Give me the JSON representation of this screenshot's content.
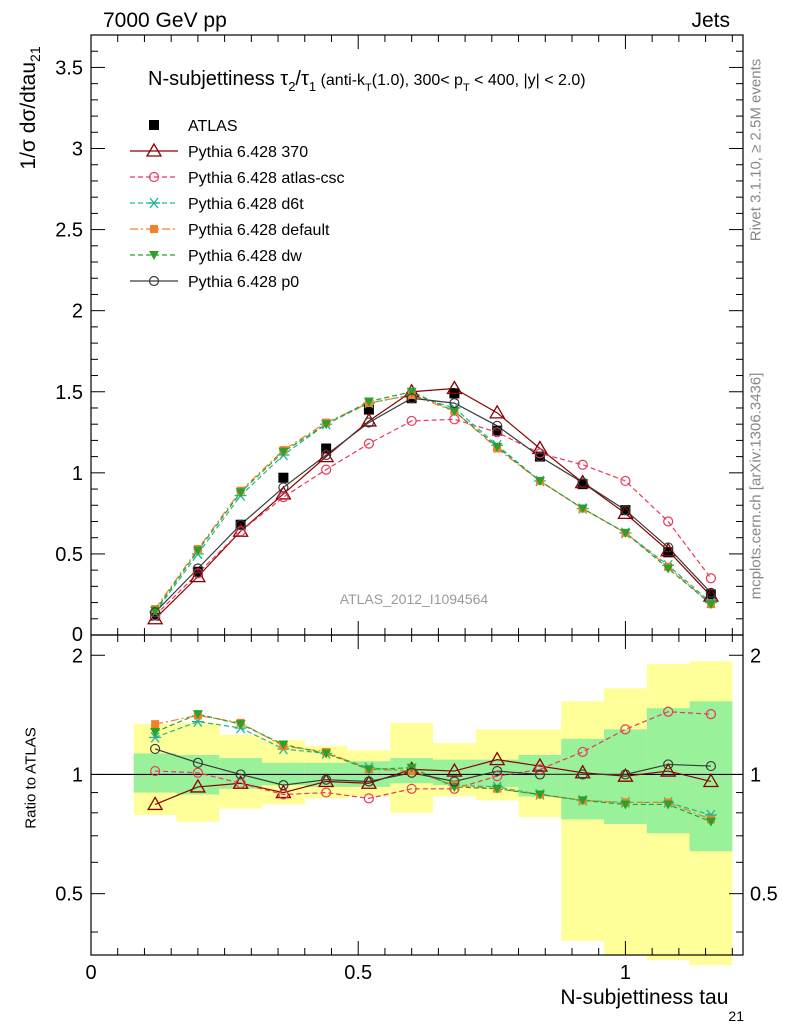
{
  "header": {
    "energy_label": "7000 GeV pp",
    "type_label": "Jets"
  },
  "axes": {
    "upper_ylabel_main": "1/σ dσ/dtau",
    "upper_ylabel_sub": "21",
    "ratio_ylabel": "Ratio to ATLAS",
    "xlabel_main": "N-subjettiness tau",
    "xlabel_sub": "21"
  },
  "side_text": {
    "rivet": "Rivet 3.1.10, ≥ 2.5M events",
    "mcplots": "mcplots.cern.ch [arXiv:1306.3436]"
  },
  "chart_data": {
    "type": "line",
    "title": "N-subjettiness τ2/τ1 (anti-kT(1.0), 300< pT < 400, |y| < 2.0)",
    "watermark": "ATLAS_2012_I1094564",
    "xlabel": "N-subjettiness tau21",
    "ylabel": "1/σ dσ/dtau21",
    "xlim": [
      0,
      1.22
    ],
    "ylim": [
      0,
      3.7
    ],
    "ratio_ylim": [
      0.35,
      2.25
    ],
    "grid": false,
    "legend_position": "top-left",
    "x": [
      0.12,
      0.2,
      0.28,
      0.36,
      0.44,
      0.52,
      0.6,
      0.68,
      0.76,
      0.84,
      0.92,
      1.0,
      1.08,
      1.16
    ],
    "x_bin_edges": [
      0.08,
      0.16,
      0.24,
      0.32,
      0.4,
      0.48,
      0.56,
      0.64,
      0.72,
      0.8,
      0.88,
      0.96,
      1.04,
      1.12,
      1.2
    ],
    "yticks": [
      0,
      0.5,
      1,
      1.5,
      2,
      2.5,
      3,
      3.5
    ],
    "ytick_labels": [
      "0",
      "0.5",
      "1",
      "1.5",
      "2",
      "2.5",
      "3",
      "3.5"
    ],
    "xticks": [
      0,
      0.5,
      1
    ],
    "xtick_labels": [
      "0",
      "0.5",
      "1"
    ],
    "ratio_yticks": [
      0.5,
      1,
      2
    ],
    "ratio_ytick_labels": [
      "0.5",
      "1",
      "2"
    ],
    "reference": {
      "name": "ATLAS",
      "values": [
        0.12,
        0.39,
        0.68,
        0.97,
        1.15,
        1.39,
        1.46,
        1.49,
        1.26,
        1.1,
        0.93,
        0.77,
        0.51,
        0.25
      ],
      "stat_band_low": [
        0.9,
        0.89,
        0.92,
        0.94,
        0.93,
        0.93,
        0.95,
        0.94,
        0.93,
        0.88,
        0.77,
        0.75,
        0.71,
        0.64
      ],
      "stat_band_high": [
        1.13,
        1.12,
        1.1,
        1.07,
        1.07,
        1.08,
        1.1,
        1.09,
        1.09,
        1.12,
        1.23,
        1.3,
        1.47,
        1.53
      ],
      "total_band_low": [
        0.79,
        0.76,
        0.82,
        0.84,
        0.87,
        0.88,
        0.8,
        0.88,
        0.86,
        0.78,
        0.38,
        0.35,
        0.34,
        0.33
      ],
      "total_band_high": [
        1.34,
        1.35,
        1.26,
        1.22,
        1.18,
        1.15,
        1.35,
        1.2,
        1.3,
        1.3,
        1.53,
        1.65,
        1.9,
        1.93
      ]
    },
    "series": [
      {
        "name": "Pythia 6.428 370",
        "color": "#8b0000",
        "marker": "open-triangle",
        "dash": "solid",
        "values": [
          0.1,
          0.36,
          0.64,
          0.87,
          1.1,
          1.32,
          1.5,
          1.52,
          1.37,
          1.15,
          0.94,
          0.75,
          0.52,
          0.24
        ],
        "ratio": [
          0.84,
          0.93,
          0.95,
          0.9,
          0.96,
          0.95,
          1.03,
          1.02,
          1.09,
          1.05,
          1.01,
          0.99,
          1.02,
          0.96
        ]
      },
      {
        "name": "Pythia 6.428 atlas-csc",
        "color": "#e8385c",
        "marker": "open-circle",
        "dash": "dashed",
        "values": [
          0.12,
          0.38,
          0.64,
          0.85,
          1.02,
          1.18,
          1.32,
          1.33,
          1.25,
          1.12,
          1.05,
          0.95,
          0.7,
          0.35
        ],
        "ratio": [
          1.02,
          1.01,
          0.95,
          0.89,
          0.9,
          0.87,
          0.92,
          0.92,
          0.99,
          1.03,
          1.14,
          1.3,
          1.44,
          1.42
        ]
      },
      {
        "name": "Pythia 6.428 d6t",
        "color": "#20b49a",
        "marker": "asterisk",
        "dash": "dashed",
        "values": [
          0.14,
          0.5,
          0.86,
          1.11,
          1.3,
          1.43,
          1.48,
          1.4,
          1.17,
          0.95,
          0.78,
          0.63,
          0.43,
          0.2
        ],
        "ratio": [
          1.24,
          1.36,
          1.31,
          1.16,
          1.13,
          1.04,
          1.02,
          0.94,
          0.93,
          0.89,
          0.86,
          0.85,
          0.85,
          0.79
        ]
      },
      {
        "name": "Pythia 6.428 default",
        "color": "#f58026",
        "marker": "square",
        "dash": "dashdot",
        "values": [
          0.16,
          0.53,
          0.89,
          1.14,
          1.31,
          1.43,
          1.48,
          1.38,
          1.15,
          0.95,
          0.78,
          0.63,
          0.42,
          0.19
        ],
        "ratio": [
          1.34,
          1.41,
          1.35,
          1.18,
          1.14,
          1.03,
          1.02,
          0.94,
          0.92,
          0.89,
          0.86,
          0.85,
          0.85,
          0.77
        ]
      },
      {
        "name": "Pythia 6.428 dw",
        "color": "#2ca02c",
        "marker": "filled-triangle-down",
        "dash": "dashed",
        "values": [
          0.15,
          0.52,
          0.88,
          1.13,
          1.3,
          1.44,
          1.5,
          1.38,
          1.16,
          0.95,
          0.78,
          0.63,
          0.41,
          0.19
        ],
        "ratio": [
          1.28,
          1.42,
          1.34,
          1.19,
          1.13,
          1.03,
          1.04,
          0.93,
          0.92,
          0.89,
          0.86,
          0.84,
          0.84,
          0.76
        ]
      },
      {
        "name": "Pythia 6.428 p0",
        "color": "#3a3a3a",
        "marker": "open-circle",
        "dash": "solid",
        "values": [
          0.14,
          0.41,
          0.68,
          0.91,
          1.11,
          1.31,
          1.46,
          1.43,
          1.29,
          1.1,
          0.94,
          0.77,
          0.54,
          0.26
        ],
        "ratio": [
          1.16,
          1.07,
          1.0,
          0.94,
          0.97,
          0.96,
          1.01,
          0.96,
          1.02,
          1.0,
          1.0,
          1.0,
          1.06,
          1.05
        ]
      }
    ]
  }
}
